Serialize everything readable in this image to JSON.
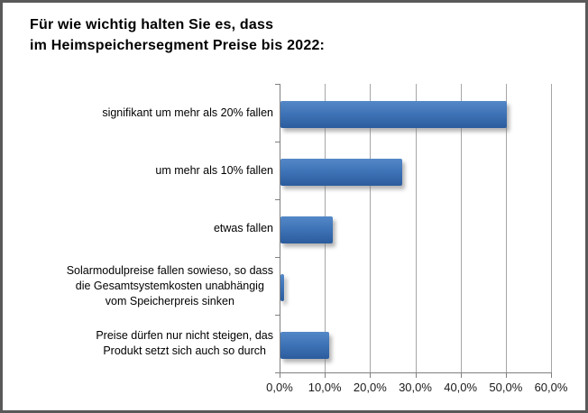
{
  "frame": {
    "border_color": "#595959",
    "background_color": "#ffffff"
  },
  "chart_data": {
    "type": "bar",
    "orientation": "horizontal",
    "title_lines": [
      "Für wie wichtig halten Sie es, dass",
      "im Heimspeichersegment Preise bis 2022:"
    ],
    "categories": [
      [
        "signifikant um mehr als 20% fallen"
      ],
      [
        "um mehr als 10% fallen"
      ],
      [
        "etwas fallen"
      ],
      [
        "Solarmodulpreise fallen sowieso, so dass",
        "die Gesamtsystemkosten unabhängig",
        "vom Speicherpreis sinken"
      ],
      [
        "Preise dürfen nur nicht steigen, das",
        "Produkt setzt sich auch so durch"
      ]
    ],
    "values": [
      50.0,
      26.9,
      11.5,
      0.8,
      10.8
    ],
    "x_tick_labels": [
      "0,0%",
      "10,0%",
      "20,0%",
      "30,0%",
      "40,0%",
      "50,0%",
      "60,0%"
    ],
    "xlim": [
      0,
      60
    ],
    "grid": true,
    "legend": "none",
    "bar_color": "#3f74b8",
    "gridline_color": "#a6a6a6",
    "axis_color": "#808080",
    "text_color": "#000000"
  }
}
